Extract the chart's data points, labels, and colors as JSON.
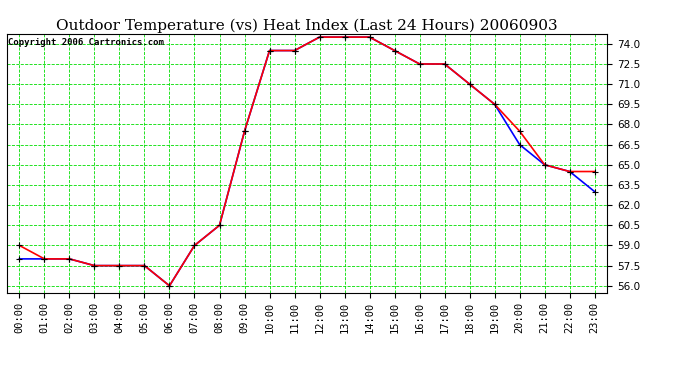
{
  "title": "Outdoor Temperature (vs) Heat Index (Last 24 Hours) 20060903",
  "copyright": "Copyright 2006 Cartronics.com",
  "x_labels": [
    "00:00",
    "01:00",
    "02:00",
    "03:00",
    "04:00",
    "05:00",
    "06:00",
    "07:00",
    "08:00",
    "09:00",
    "10:00",
    "11:00",
    "12:00",
    "13:00",
    "14:00",
    "15:00",
    "16:00",
    "17:00",
    "18:00",
    "19:00",
    "20:00",
    "21:00",
    "22:00",
    "23:00"
  ],
  "temp_data": [
    59.0,
    58.0,
    58.0,
    57.5,
    57.5,
    57.5,
    56.0,
    59.0,
    60.5,
    67.5,
    73.5,
    73.5,
    74.5,
    74.5,
    74.5,
    73.5,
    72.5,
    72.5,
    71.0,
    69.5,
    67.5,
    65.0,
    64.5,
    64.5
  ],
  "heat_index_data": [
    58.0,
    58.0,
    58.0,
    57.5,
    57.5,
    57.5,
    56.0,
    59.0,
    60.5,
    67.5,
    73.5,
    73.5,
    74.5,
    74.5,
    74.5,
    73.5,
    72.5,
    72.5,
    71.0,
    69.5,
    66.5,
    65.0,
    64.5,
    63.0
  ],
  "temp_color": "#ff0000",
  "heat_index_color": "#0000ff",
  "marker_color": "#000000",
  "bg_color": "#ffffff",
  "grid_color": "#00dd00",
  "ylim": [
    55.5,
    74.75
  ],
  "yticks": [
    56.0,
    57.5,
    59.0,
    60.5,
    62.0,
    63.5,
    65.0,
    66.5,
    68.0,
    69.5,
    71.0,
    72.5,
    74.0
  ],
  "title_fontsize": 11,
  "copyright_fontsize": 6.5,
  "tick_fontsize": 7.5,
  "ylabel_fontsize": 7.5
}
